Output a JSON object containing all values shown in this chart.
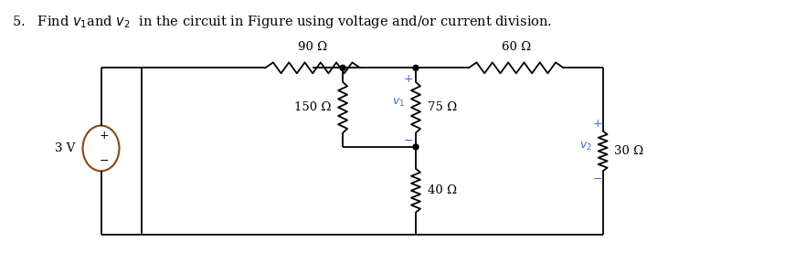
{
  "bg_color": "#ffffff",
  "text_color": "#000000",
  "circuit_color": "#000000",
  "blue_color": "#4169CD",
  "fig_width": 8.82,
  "fig_height": 2.99,
  "dpi": 100,
  "title": "5.   Find $v_1$and $v_2$  in the circuit in Figure using voltage and/or current division.",
  "resistor_labels": {
    "R90": "90 Ω",
    "R60": "60 Ω",
    "R150": "150 Ω",
    "R75": "75 Ω",
    "R40": "40 Ω",
    "R30": "30 Ω"
  }
}
